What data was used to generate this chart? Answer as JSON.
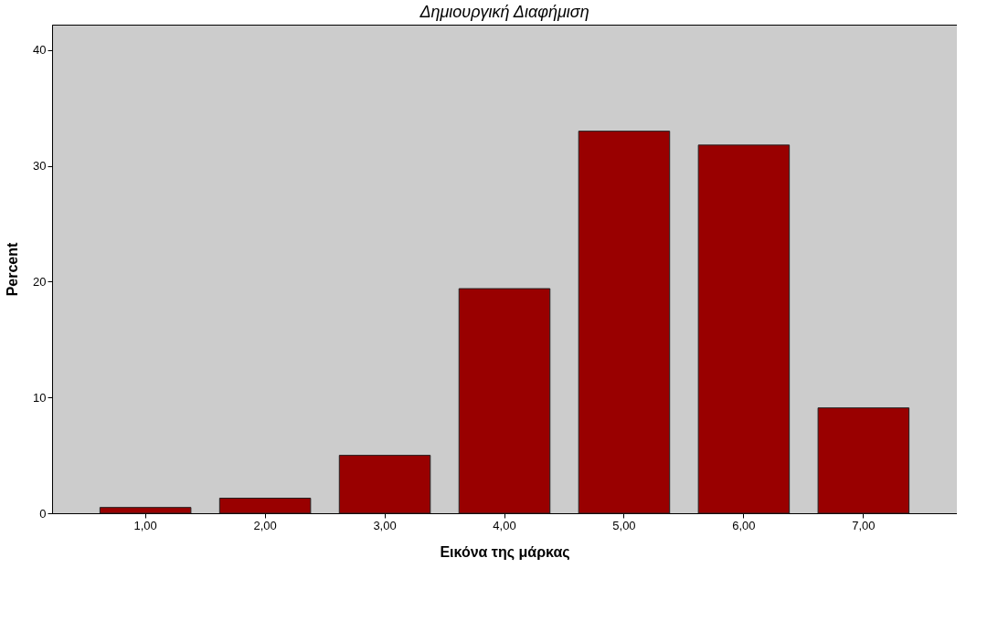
{
  "chart_data": {
    "type": "bar",
    "title": "Δημιουργική Διαφήμιση",
    "xlabel": "Εικόνα της μάρκας",
    "ylabel": "Percent",
    "categories": [
      "1,00",
      "2,00",
      "3,00",
      "4,00",
      "5,00",
      "6,00",
      "7,00"
    ],
    "values": [
      0.5,
      1.3,
      5.0,
      19.4,
      33.0,
      31.8,
      9.1
    ],
    "color": "#990000",
    "ylim": [
      0,
      42.2
    ],
    "yticks": [
      0,
      10,
      20,
      30,
      40
    ],
    "grid": false
  }
}
